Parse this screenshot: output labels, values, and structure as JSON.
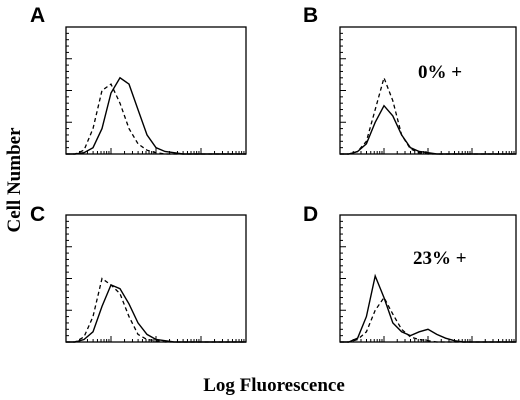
{
  "chart_data": {
    "type": "histogram-panels",
    "ylabel": "Cell Number",
    "xlabel": "Log Fluorescence",
    "xscale": "log",
    "xlim": [
      0,
      1
    ],
    "panels": [
      {
        "label": "A",
        "annotation": "",
        "x": [
          0.05,
          0.1,
          0.15,
          0.2,
          0.25,
          0.3,
          0.35,
          0.4,
          0.45,
          0.5,
          0.55,
          0.6,
          0.65,
          0.7,
          0.75,
          0.8,
          0.85,
          0.9
        ],
        "series": [
          {
            "style": "solid",
            "values": [
              0,
              0.01,
              0.05,
              0.2,
              0.48,
              0.6,
              0.55,
              0.35,
              0.15,
              0.05,
              0.02,
              0.01,
              0,
              0,
              0,
              0,
              0,
              0
            ]
          },
          {
            "style": "dashed",
            "values": [
              0,
              0.03,
              0.2,
              0.5,
              0.55,
              0.4,
              0.2,
              0.08,
              0.03,
              0.01,
              0,
              0,
              0,
              0,
              0,
              0,
              0,
              0
            ]
          }
        ]
      },
      {
        "label": "B",
        "annotation": "0% +",
        "x": [
          0.05,
          0.1,
          0.15,
          0.2,
          0.25,
          0.3,
          0.35,
          0.4,
          0.45,
          0.5,
          0.55,
          0.6,
          0.65,
          0.7,
          0.75,
          0.8,
          0.85,
          0.9
        ],
        "series": [
          {
            "style": "solid",
            "values": [
              0,
              0.02,
              0.08,
              0.25,
              0.38,
              0.3,
              0.15,
              0.05,
              0.02,
              0.01,
              0,
              0,
              0,
              0,
              0,
              0,
              0,
              0
            ]
          },
          {
            "style": "dashed",
            "values": [
              0,
              0.02,
              0.1,
              0.35,
              0.6,
              0.42,
              0.15,
              0.04,
              0.01,
              0,
              0,
              0,
              0,
              0,
              0,
              0,
              0,
              0
            ]
          }
        ]
      },
      {
        "label": "C",
        "annotation": "",
        "x": [
          0.05,
          0.1,
          0.15,
          0.2,
          0.25,
          0.3,
          0.35,
          0.4,
          0.45,
          0.5,
          0.55,
          0.6,
          0.65,
          0.7,
          0.75,
          0.8,
          0.85,
          0.9
        ],
        "series": [
          {
            "style": "solid",
            "values": [
              0,
              0.02,
              0.08,
              0.28,
              0.45,
              0.42,
              0.3,
              0.15,
              0.06,
              0.02,
              0.01,
              0,
              0,
              0,
              0,
              0,
              0,
              0
            ]
          },
          {
            "style": "dashed",
            "values": [
              0,
              0.04,
              0.2,
              0.5,
              0.45,
              0.38,
              0.2,
              0.06,
              0.02,
              0.01,
              0,
              0,
              0,
              0,
              0,
              0,
              0,
              0
            ]
          }
        ]
      },
      {
        "label": "D",
        "annotation": "23% +",
        "x": [
          0.05,
          0.1,
          0.15,
          0.2,
          0.25,
          0.3,
          0.35,
          0.4,
          0.45,
          0.5,
          0.55,
          0.6,
          0.65,
          0.7,
          0.75,
          0.8,
          0.85,
          0.9
        ],
        "series": [
          {
            "style": "solid",
            "values": [
              0,
              0.03,
              0.2,
              0.52,
              0.35,
              0.15,
              0.08,
              0.05,
              0.08,
              0.1,
              0.06,
              0.03,
              0.01,
              0,
              0,
              0,
              0,
              0
            ]
          },
          {
            "style": "dashed",
            "values": [
              0,
              0.02,
              0.08,
              0.25,
              0.35,
              0.22,
              0.1,
              0.04,
              0.02,
              0.01,
              0,
              0,
              0,
              0,
              0,
              0,
              0,
              0
            ]
          }
        ]
      }
    ]
  }
}
